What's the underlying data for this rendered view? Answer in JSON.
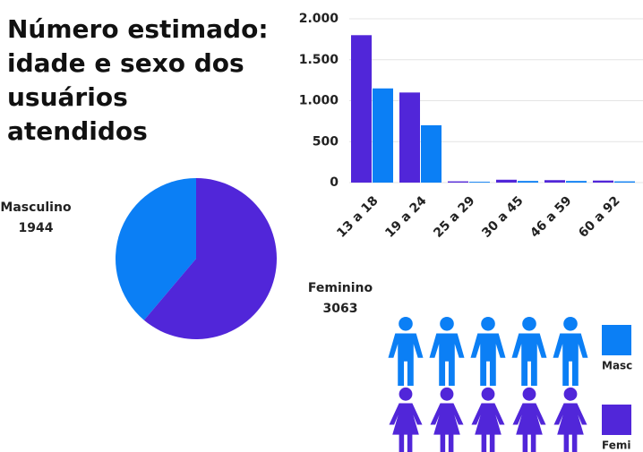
{
  "title": "Número estimado: idade e sexo dos usuários atendidos",
  "chart_data": [
    {
      "type": "pie",
      "categories": [
        "Masculino",
        "Feminino"
      ],
      "values": [
        1944,
        3063
      ],
      "colors": [
        "#0b7ff5",
        "#5126d9"
      ]
    },
    {
      "type": "bar",
      "categories": [
        "13 a 18",
        "19 a 24",
        "25 a 29",
        "30 a 45",
        "46 a 59",
        "60 a 92"
      ],
      "series": [
        {
          "name": "Femi",
          "color": "#5126d9",
          "values": [
            1800,
            1100,
            15,
            35,
            30,
            25
          ]
        },
        {
          "name": "Masc",
          "color": "#0b7ff5",
          "values": [
            1150,
            700,
            10,
            20,
            20,
            15
          ]
        }
      ],
      "ylim": [
        0,
        2000
      ],
      "yticks": [
        0,
        500,
        {
          "value": 1000,
          "label": "1.000"
        },
        {
          "value": 1500,
          "label": "1.500"
        },
        {
          "value": 2000,
          "label": "2.000"
        }
      ],
      "grid": true
    }
  ]
}
